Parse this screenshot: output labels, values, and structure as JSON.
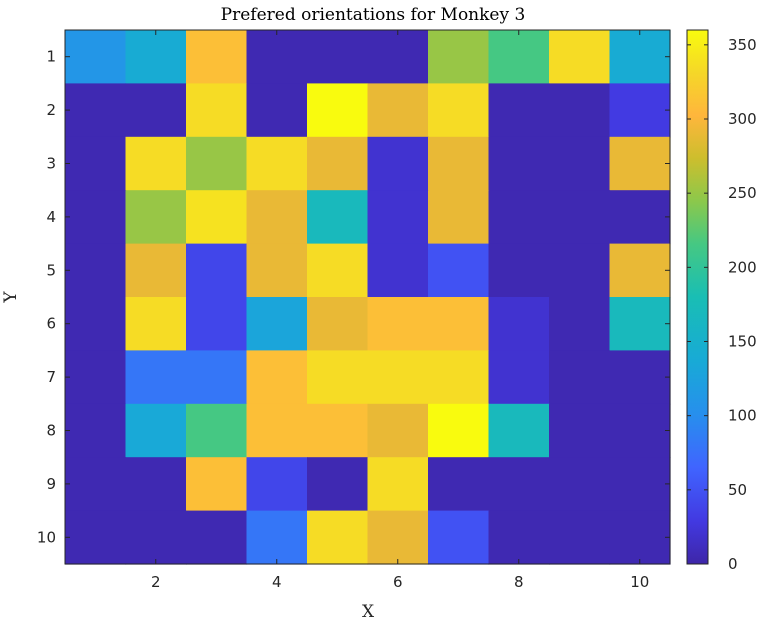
{
  "chart_data": {
    "type": "heatmap",
    "title": "Prefered orientations for Monkey 3",
    "xlabel": "X",
    "ylabel": "Y",
    "x_categories": [
      1,
      2,
      3,
      4,
      5,
      6,
      7,
      8,
      9,
      10
    ],
    "y_categories": [
      1,
      2,
      3,
      4,
      5,
      6,
      7,
      8,
      9,
      10
    ],
    "xticks": [
      2,
      4,
      6,
      8,
      10
    ],
    "yticks": [
      1,
      2,
      3,
      4,
      5,
      6,
      7,
      8,
      9,
      10
    ],
    "colorbar_ticks": [
      0,
      50,
      100,
      150,
      200,
      250,
      300,
      350
    ],
    "clim": [
      0,
      360
    ],
    "colormap": "parula",
    "values": [
      [
        110,
        140,
        310,
        5,
        5,
        5,
        250,
        215,
        335,
        140
      ],
      [
        5,
        5,
        335,
        5,
        360,
        290,
        335,
        5,
        5,
        30
      ],
      [
        5,
        335,
        250,
        335,
        290,
        20,
        290,
        5,
        5,
        290
      ],
      [
        5,
        250,
        340,
        290,
        170,
        20,
        290,
        5,
        5,
        5
      ],
      [
        5,
        290,
        40,
        290,
        335,
        20,
        50,
        5,
        5,
        290
      ],
      [
        5,
        335,
        40,
        130,
        290,
        310,
        310,
        20,
        5,
        170
      ],
      [
        5,
        80,
        80,
        310,
        335,
        335,
        335,
        20,
        5,
        5
      ],
      [
        5,
        135,
        215,
        310,
        310,
        290,
        360,
        170,
        5,
        5
      ],
      [
        5,
        5,
        310,
        40,
        5,
        335,
        5,
        5,
        5,
        5
      ],
      [
        5,
        5,
        5,
        80,
        335,
        290,
        50,
        5,
        5,
        5
      ]
    ]
  }
}
